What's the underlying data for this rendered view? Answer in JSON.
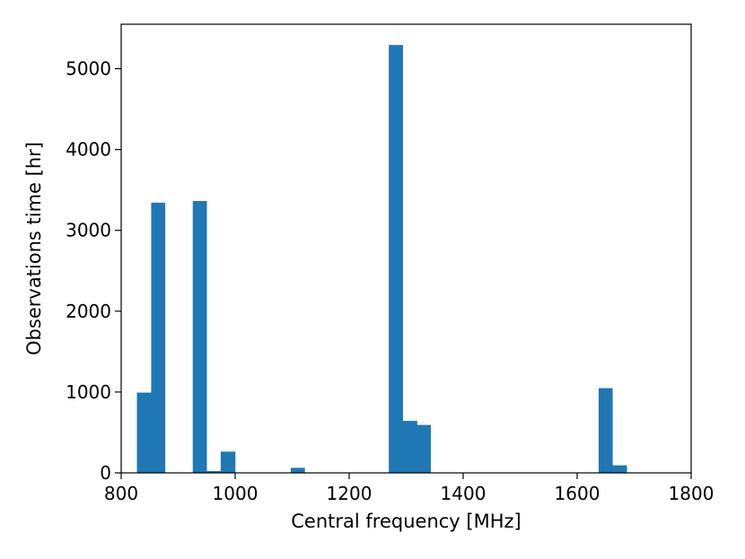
{
  "chart_data": {
    "type": "bar",
    "xlabel": "Central frequency [MHz]",
    "ylabel": "Observations time [hr]",
    "xlim": [
      800,
      1800
    ],
    "ylim": [
      0,
      5550
    ],
    "x_ticks": [
      800,
      1000,
      1200,
      1400,
      1600,
      1800
    ],
    "y_ticks": [
      0,
      1000,
      2000,
      3000,
      4000,
      5000
    ],
    "grid": false,
    "bar_color": "#1f77b4",
    "bins": [
      {
        "x0": 828,
        "x1": 853,
        "value": 990
      },
      {
        "x0": 853,
        "x1": 877,
        "value": 3340
      },
      {
        "x0": 926,
        "x1": 950,
        "value": 3360
      },
      {
        "x0": 950,
        "x1": 975,
        "value": 20
      },
      {
        "x0": 975,
        "x1": 1000,
        "value": 260
      },
      {
        "x0": 1098,
        "x1": 1122,
        "value": 60
      },
      {
        "x0": 1270,
        "x1": 1294,
        "value": 5290
      },
      {
        "x0": 1294,
        "x1": 1319,
        "value": 640
      },
      {
        "x0": 1319,
        "x1": 1343,
        "value": 590
      },
      {
        "x0": 1638,
        "x1": 1662,
        "value": 1045
      },
      {
        "x0": 1662,
        "x1": 1687,
        "value": 90
      }
    ]
  }
}
